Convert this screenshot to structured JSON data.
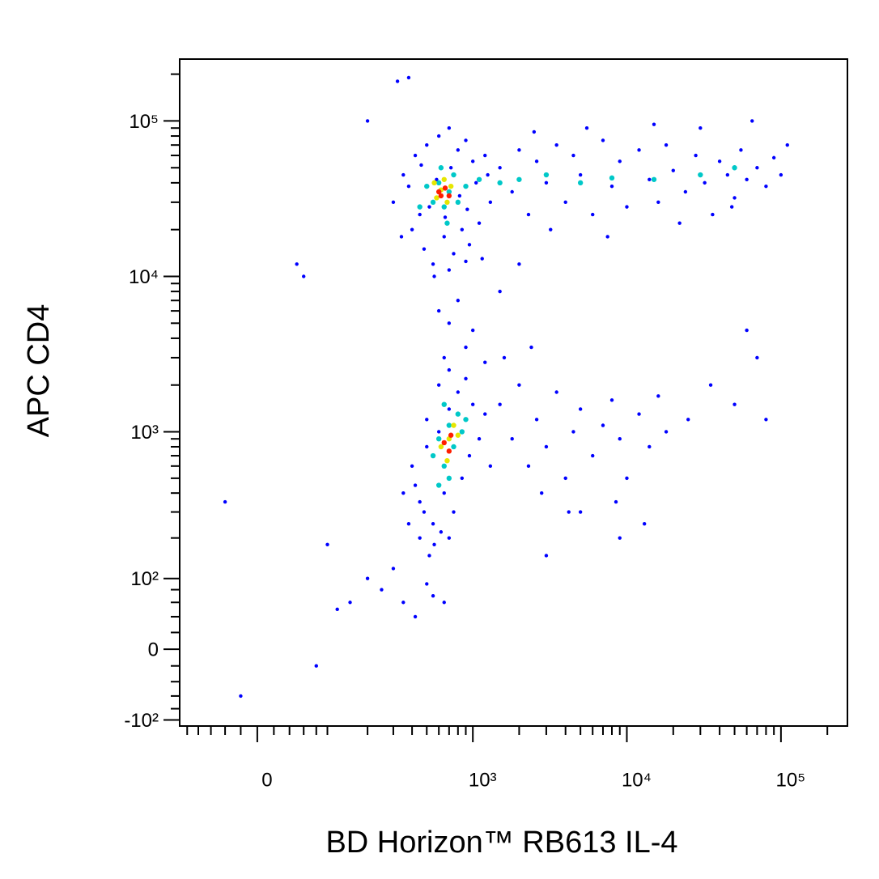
{
  "chart_data": {
    "type": "scatter",
    "scale": "biexponential",
    "xlabel": "BD Horizon™ RB613 IL-4",
    "ylabel": "APC CD4",
    "xlim": [
      -115,
      270000
    ],
    "ylim": [
      -112,
      250000
    ],
    "xticks": [
      0,
      {
        "value": 1000,
        "label": "10³"
      },
      {
        "value": 10000,
        "label": "10⁴"
      },
      {
        "value": 100000,
        "label": "10⁵"
      }
    ],
    "yticks": [
      {
        "value": -100,
        "label": "-10²"
      },
      0,
      {
        "value": 100,
        "label": "10²"
      },
      {
        "value": 1000,
        "label": "10³"
      },
      {
        "value": 10000,
        "label": "10⁴"
      },
      {
        "value": 100000,
        "label": "10⁵"
      }
    ],
    "xminor": [
      -100,
      -80,
      -60,
      -40,
      -20,
      20,
      40,
      60,
      80,
      100,
      200,
      300,
      400,
      500,
      600,
      700,
      800,
      900,
      2000,
      3000,
      4000,
      5000,
      6000,
      7000,
      8000,
      9000,
      20000,
      30000,
      40000,
      50000,
      60000,
      70000,
      80000,
      90000,
      200000
    ],
    "yminor": [
      -80,
      -60,
      -40,
      -20,
      20,
      40,
      60,
      80,
      200,
      300,
      400,
      500,
      600,
      700,
      800,
      900,
      2000,
      3000,
      4000,
      5000,
      6000,
      7000,
      8000,
      9000,
      20000,
      30000,
      40000,
      50000,
      60000,
      70000,
      80000,
      90000,
      200000
    ],
    "series": [
      {
        "color": "#0000ff",
        "x": [
          300,
          350,
          400,
          420,
          450,
          480,
          500,
          550,
          600,
          650,
          700,
          750,
          800,
          850,
          900,
          950,
          1000,
          1100,
          1200,
          1300,
          380,
          460,
          520,
          580,
          660,
          720,
          820,
          920,
          1050,
          1250,
          340,
          560,
          700,
          900,
          1150,
          1500,
          1800,
          2000,
          2300,
          2600,
          3000,
          3500,
          4000,
          4500,
          5000,
          6000,
          7000,
          8000,
          9000,
          10000,
          12000,
          14000,
          16000,
          18000,
          20000,
          24000,
          28000,
          32000,
          36000,
          40000,
          45000,
          50000,
          55000,
          60000,
          70000,
          80000,
          90000,
          100000,
          110000,
          2500,
          5500,
          15000,
          30000,
          65000,
          3200,
          7500,
          22000,
          48000,
          700,
          900,
          800,
          1000,
          600,
          1200,
          650,
          1500,
          2000,
          400,
          450,
          500,
          550,
          600,
          650,
          700,
          750,
          800,
          850,
          900,
          950,
          1000,
          1100,
          1200,
          1300,
          500,
          600,
          700,
          420,
          480,
          560,
          620,
          450,
          520,
          380,
          350,
          700,
          1500,
          1800,
          2000,
          2300,
          2600,
          3000,
          3500,
          4000,
          4500,
          5000,
          6000,
          7000,
          8000,
          9000,
          10000,
          12000,
          14000,
          16000,
          18000,
          25000,
          35000,
          50000,
          2800,
          4200,
          8500,
          1600,
          2400,
          200,
          250,
          300,
          500,
          650,
          150,
          100,
          420,
          550,
          5000,
          9000,
          13000,
          -40,
          -20,
          80,
          120,
          350,
          3000,
          60,
          50,
          200,
          320,
          380,
          70000,
          60000,
          80000
        ],
        "y": [
          30000,
          45000,
          20000,
          60000,
          25000,
          15000,
          70000,
          12000,
          80000,
          18000,
          90000,
          14000,
          65000,
          20000,
          75000,
          16000,
          55000,
          22000,
          60000,
          30000,
          38000,
          52000,
          28000,
          42000,
          24000,
          50000,
          33000,
          27000,
          40000,
          45000,
          18000,
          10000,
          11000,
          12500,
          13000,
          50000,
          35000,
          65000,
          25000,
          55000,
          40000,
          70000,
          30000,
          60000,
          45000,
          25000,
          75000,
          38000,
          55000,
          28000,
          65000,
          42000,
          30000,
          70000,
          48000,
          35000,
          60000,
          40000,
          25000,
          55000,
          45000,
          32000,
          65000,
          42000,
          50000,
          38000,
          58000,
          45000,
          70000,
          85000,
          90000,
          95000,
          90000,
          100000,
          20000,
          18000,
          22000,
          28000,
          5000,
          3500,
          7000,
          4500,
          6000,
          2800,
          3000,
          8000,
          12000,
          600,
          350,
          1200,
          250,
          2000,
          400,
          2500,
          300,
          1800,
          500,
          2200,
          700,
          1500,
          900,
          1300,
          600,
          800,
          1000,
          1400,
          450,
          300,
          180,
          220,
          200,
          150,
          250,
          400,
          200,
          1500,
          900,
          2000,
          600,
          1200,
          800,
          1800,
          500,
          1000,
          1400,
          700,
          1100,
          1600,
          900,
          500,
          1300,
          800,
          1700,
          1000,
          1200,
          2000,
          1500,
          400,
          300,
          350,
          3000,
          3500,
          100,
          80,
          120,
          90,
          60,
          60,
          180,
          40,
          70,
          300,
          200,
          250,
          350,
          -60,
          -20,
          50,
          60,
          150,
          10000,
          12000,
          100000,
          180000,
          190000,
          3000,
          4500,
          1200
        ]
      },
      {
        "color": "#00c8c8",
        "x": [
          550,
          600,
          650,
          700,
          750,
          500,
          800,
          620,
          680,
          900,
          1100,
          1500,
          2000,
          3000,
          5000,
          8000,
          15000,
          30000,
          50000,
          450,
          550,
          600,
          650,
          700,
          750,
          800,
          850,
          600,
          700,
          650,
          900
        ],
        "y": [
          30000,
          40000,
          28000,
          35000,
          45000,
          38000,
          30000,
          50000,
          22000,
          38000,
          42000,
          40000,
          42000,
          45000,
          40000,
          43000,
          42000,
          45000,
          50000,
          28000,
          700,
          900,
          600,
          1100,
          800,
          1300,
          1000,
          450,
          500,
          1500,
          1200
        ]
      },
      {
        "color": "#e6e600",
        "x": [
          580,
          620,
          680,
          720,
          650,
          560,
          620,
          700,
          680,
          750,
          800
        ],
        "y": [
          32000,
          36000,
          30000,
          38000,
          42000,
          40000,
          800,
          900,
          650,
          1100,
          950
        ]
      },
      {
        "color": "#ff1e00",
        "x": [
          620,
          660,
          600,
          700,
          650,
          700,
          720
        ],
        "y": [
          33000,
          37000,
          35000,
          33000,
          850,
          750,
          950
        ]
      }
    ]
  }
}
